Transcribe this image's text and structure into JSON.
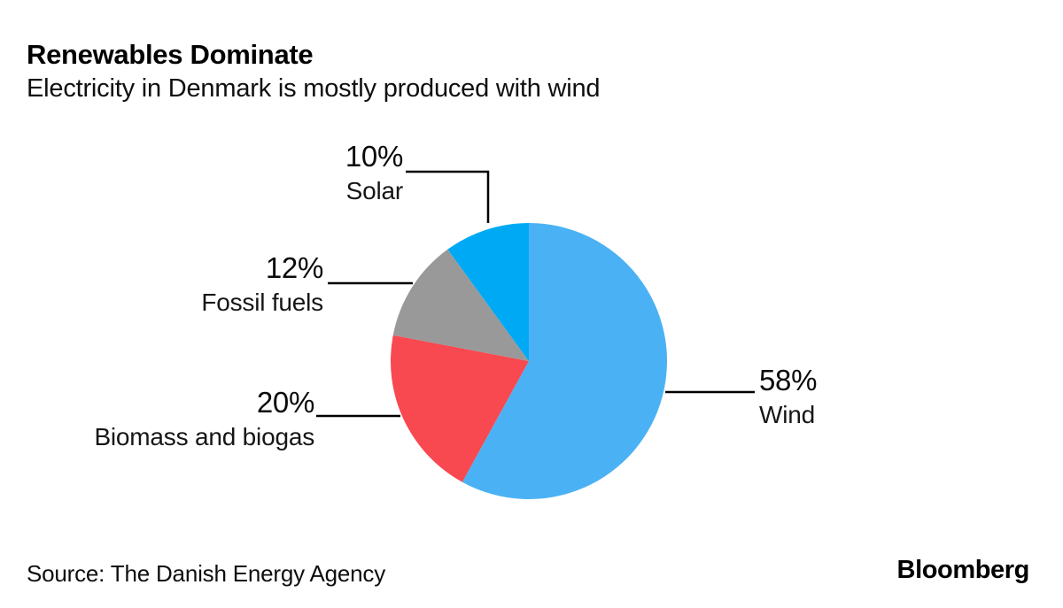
{
  "header": {
    "title": "Renewables Dominate",
    "subtitle": "Electricity in Denmark is mostly produced with wind"
  },
  "chart_data": {
    "type": "pie",
    "title": "Renewables Dominate",
    "subtitle": "Electricity in Denmark is mostly produced with wind",
    "unit": "%",
    "start_angle_deg": 0,
    "direction": "clockwise",
    "legend_position": "callout-labels",
    "slices": [
      {
        "label": "Wind",
        "value": 58,
        "display": "58%",
        "color": "#4AB2F4"
      },
      {
        "label": "Biomass and biogas",
        "value": 20,
        "display": "20%",
        "color": "#F84850"
      },
      {
        "label": "Fossil fuels",
        "value": 12,
        "display": "12%",
        "color": "#999999"
      },
      {
        "label": "Solar",
        "value": 10,
        "display": "10%",
        "color": "#00A9F4"
      }
    ]
  },
  "footer": {
    "source": "Source: The Danish Energy Agency",
    "brand": "Bloomberg"
  }
}
